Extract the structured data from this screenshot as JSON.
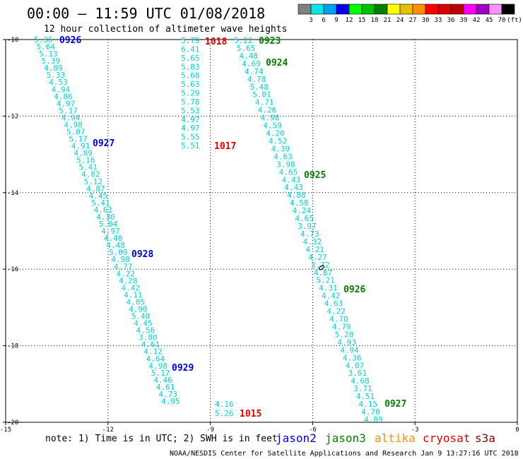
{
  "title": "00:00 – 11:59 UTC 01/08/2018",
  "subtitle": "12 hour collection of altimeter wave heights",
  "scale": {
    "colors": [
      "#808080",
      "#00e8e8",
      "#00a0f0",
      "#0000f0",
      "#00ff00",
      "#00c000",
      "#008000",
      "#ffff00",
      "#e8c000",
      "#ff9000",
      "#ff0000",
      "#d80000",
      "#c00000",
      "#ff00ff",
      "#a000c0",
      "#ff90ff",
      "#000000"
    ],
    "labels": [
      "3",
      "6",
      "9",
      "12",
      "15",
      "18",
      "21",
      "24",
      "27",
      "30",
      "33",
      "36",
      "39",
      "42",
      "45",
      "70",
      "(ft)"
    ]
  },
  "axes": {
    "x_labels": [
      "-15",
      "-12",
      "-9",
      "-6",
      "-3",
      "0"
    ],
    "y_labels": [
      "-10",
      "-12",
      "-14",
      "-16",
      "-18",
      "-20"
    ]
  },
  "tracks": [
    {
      "satellite": "jason2",
      "values": [
        "5.36",
        "5.64",
        "5.13",
        "5.39",
        "4.89",
        "5.33",
        "4.53",
        "4.94",
        "4.86",
        "4.97",
        "5.17",
        "4.94",
        "4.98",
        "5.07",
        "5.17",
        "4.91",
        "4.89",
        "5.16",
        "5.41",
        "4.82",
        "5.12",
        "4.87",
        "4.45",
        "5.41",
        "4.61",
        "4.30",
        "5.04",
        "4.97",
        "4.48",
        "4.48",
        "5.09",
        "4.98",
        "4.77",
        "4.22",
        "4.28",
        "4.42",
        "4.11",
        "4.05",
        "4.90",
        "5.40",
        "4.45",
        "4.56",
        "3.80",
        "4.61",
        "4.12",
        "4.64",
        "4.98",
        "5.17",
        "4.46",
        "4.61",
        "4.73",
        "4.95"
      ]
    },
    {
      "satellite": "jason2",
      "values": [
        "5.79",
        "6.41",
        "5.65",
        "5.83",
        "5.68",
        "5.63",
        "5.29",
        "5.78",
        "5.53",
        "4.97",
        "4.97",
        "5.55",
        "5.51"
      ]
    },
    {
      "satellite": "jason3",
      "values": [
        "5.22",
        "5.65",
        "4.48",
        "4.69",
        "4.74",
        "4.78",
        "5.48",
        "5.01",
        "4.71",
        "4.26",
        "4.98",
        "4.59",
        "4.20",
        "4.52",
        "4.39",
        "4.63",
        "3.98",
        "4.65",
        "4.43",
        "4.43",
        "4.88",
        "4.58",
        "4.24",
        "4.65",
        "3.97",
        "4.73",
        "4.32",
        "4.21",
        "4.27",
        "3.72",
        "4.87",
        "5.21",
        "4.31",
        "4.42",
        "4.63",
        "4.22",
        "4.70",
        "4.79",
        "5.28",
        "4.93",
        "4.94",
        "4.36",
        "4.07",
        "3.61",
        "4.68",
        "3.71",
        "4.51",
        "4.15",
        "4.70",
        "4.89"
      ]
    },
    {
      "satellite": "cryosat",
      "values": [
        "4.16",
        "5.26"
      ]
    }
  ],
  "time_labels": [
    {
      "text": "0926",
      "sat": "jason2"
    },
    {
      "text": "0927",
      "sat": "jason2"
    },
    {
      "text": "0928",
      "sat": "jason2"
    },
    {
      "text": "0929",
      "sat": "jason2"
    },
    {
      "text": "1018",
      "sat": "cryosat"
    },
    {
      "text": "1017",
      "sat": "cryosat"
    },
    {
      "text": "1015",
      "sat": "cryosat"
    },
    {
      "text": "0923",
      "sat": "jason3"
    },
    {
      "text": "0924",
      "sat": "jason3"
    },
    {
      "text": "0925",
      "sat": "jason3"
    },
    {
      "text": "0926",
      "sat": "jason3"
    },
    {
      "text": "0927",
      "sat": "jason3"
    }
  ],
  "note": "note: 1) Time is in UTC; 2) SWH is in feet",
  "legend": [
    {
      "name": "jason2",
      "color": "#0000d0"
    },
    {
      "name": "jason3",
      "color": "#008000"
    },
    {
      "name": "altika",
      "color": "#ff8c00"
    },
    {
      "name": "cryosat",
      "color": "#e00000"
    },
    {
      "name": "s3a",
      "color": "#800000"
    }
  ],
  "credit": "NOAA/NESDIS Center for Satellite Applications and Research   Jan  9 13:27:16 UTC 2018",
  "sat_colors": {
    "jason2": "#0000d0",
    "jason3": "#008000",
    "cryosat": "#e00000",
    "values": "#00d0d8"
  }
}
